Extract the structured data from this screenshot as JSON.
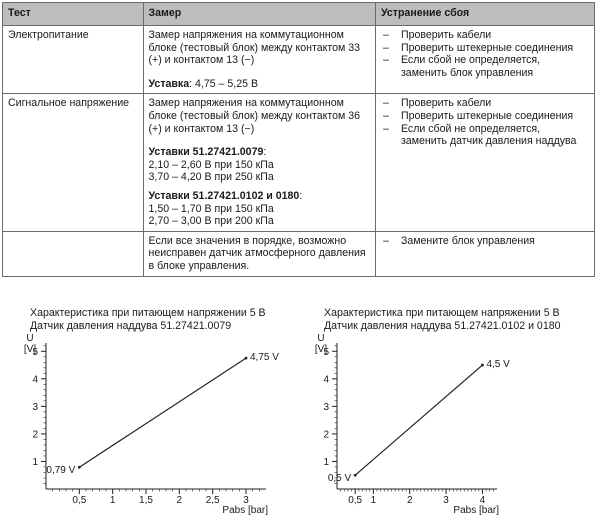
{
  "table": {
    "headers": [
      "Тест",
      "Замер",
      "Устранение сбоя"
    ],
    "rows": [
      {
        "test": "Электропитание",
        "measure": "Замер напряжения на коммутационном блоке (тестовый блок) между контактом 33 (+) и контактом 13 (−)",
        "setting_label": "Уставка",
        "setting_value": ": 4,75 – 5,25 В",
        "fixes": [
          "Проверить кабели",
          "Проверить штекерные соединения",
          "Если сбой не определяется, заменить блок управления"
        ]
      },
      {
        "test": "Сигнальное напряжение",
        "measure": "Замер напряжения на коммутационном блоке (тестовый блок) между контактом 36 (+) и контактом 13 (−)",
        "set1_label": "Уставки 51.27421.0079",
        "set1_lines": [
          "2,10 – 2,60 В при 150 кПа",
          "3,70 – 4,20 В при 250 кПа"
        ],
        "set2_label": "Уставки 51.27421.0102 и 0180",
        "set2_lines": [
          "1,50 – 1,70 В при 150 кПа",
          "2,70 – 3,00 В при 200 кПа"
        ],
        "fixes": [
          "Проверить кабели",
          "Проверить штекерные соединения",
          "Если сбой не определяется, заменить датчик давления наддува"
        ]
      },
      {
        "test": "",
        "measure": "Если все значения в порядке, возможно неисправен датчик атмосферного давления в блоке управления.",
        "fixes": [
          "Замените блок управления"
        ]
      }
    ]
  },
  "chart_data": [
    {
      "type": "line",
      "title_lines": [
        "Характеристика при питающем напряжении 5 В",
        "Датчик давления наддува 51.27421.0079"
      ],
      "ylabel": "U [V]",
      "xlabel": "Pabs [bar]",
      "x_ticks": [
        "0,5",
        "1",
        "1,5",
        "2",
        "2,5",
        "3"
      ],
      "x_tick_values": [
        0.5,
        1,
        1.5,
        2,
        2.5,
        3
      ],
      "y_ticks": [
        "1",
        "2",
        "3",
        "4",
        "5"
      ],
      "y_tick_values": [
        1,
        2,
        3,
        4,
        5
      ],
      "xlim": [
        0,
        3.3
      ],
      "ylim": [
        0,
        5.3
      ],
      "series": [
        {
          "x": [
            0.5,
            3.0
          ],
          "y": [
            0.79,
            4.75
          ]
        }
      ],
      "point_labels": [
        "0,79 V",
        "4,75 V"
      ]
    },
    {
      "type": "line",
      "title_lines": [
        "Характеристика при питающем напряжении 5 В",
        "Датчик давления наддува 51.27421.0102 и 0180"
      ],
      "ylabel": "U [V]",
      "xlabel": "Pabs [bar]",
      "x_ticks": [
        "0,5",
        "1",
        "2",
        "3",
        "4"
      ],
      "x_tick_values": [
        0.5,
        1,
        2,
        3,
        4
      ],
      "y_ticks": [
        "1",
        "2",
        "3",
        "4",
        "5"
      ],
      "y_tick_values": [
        1,
        2,
        3,
        4,
        5
      ],
      "xlim": [
        0,
        4.4
      ],
      "ylim": [
        0,
        5.3
      ],
      "series": [
        {
          "x": [
            0.5,
            4.0
          ],
          "y": [
            0.5,
            4.5
          ]
        }
      ],
      "point_labels": [
        "0,5 V",
        "4,5 V"
      ]
    }
  ]
}
